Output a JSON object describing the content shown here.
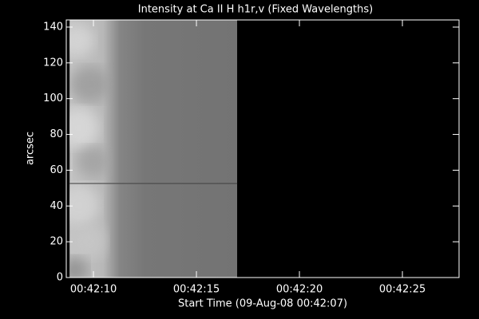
{
  "chart_data": {
    "type": "image",
    "title": "Intensity at Ca II H h1r,v (Fixed Wavelengths)",
    "x_label": "Start Time (09-Aug-08 00:42:07)",
    "y_label": "arcsec",
    "xlim": [
      1.68,
      20.75
    ],
    "xticks": [
      {
        "value": 3,
        "label": "00:42:10"
      },
      {
        "value": 8,
        "label": "00:42:15"
      },
      {
        "value": 13,
        "label": "00:42:20"
      },
      {
        "value": 18,
        "label": "00:42:25"
      }
    ],
    "ylim": [
      0,
      144
    ],
    "yticks": [
      0,
      20,
      40,
      60,
      80,
      100,
      120,
      140
    ],
    "image_xrange": [
      1.84,
      9.98
    ],
    "color": "#ffffff"
  }
}
